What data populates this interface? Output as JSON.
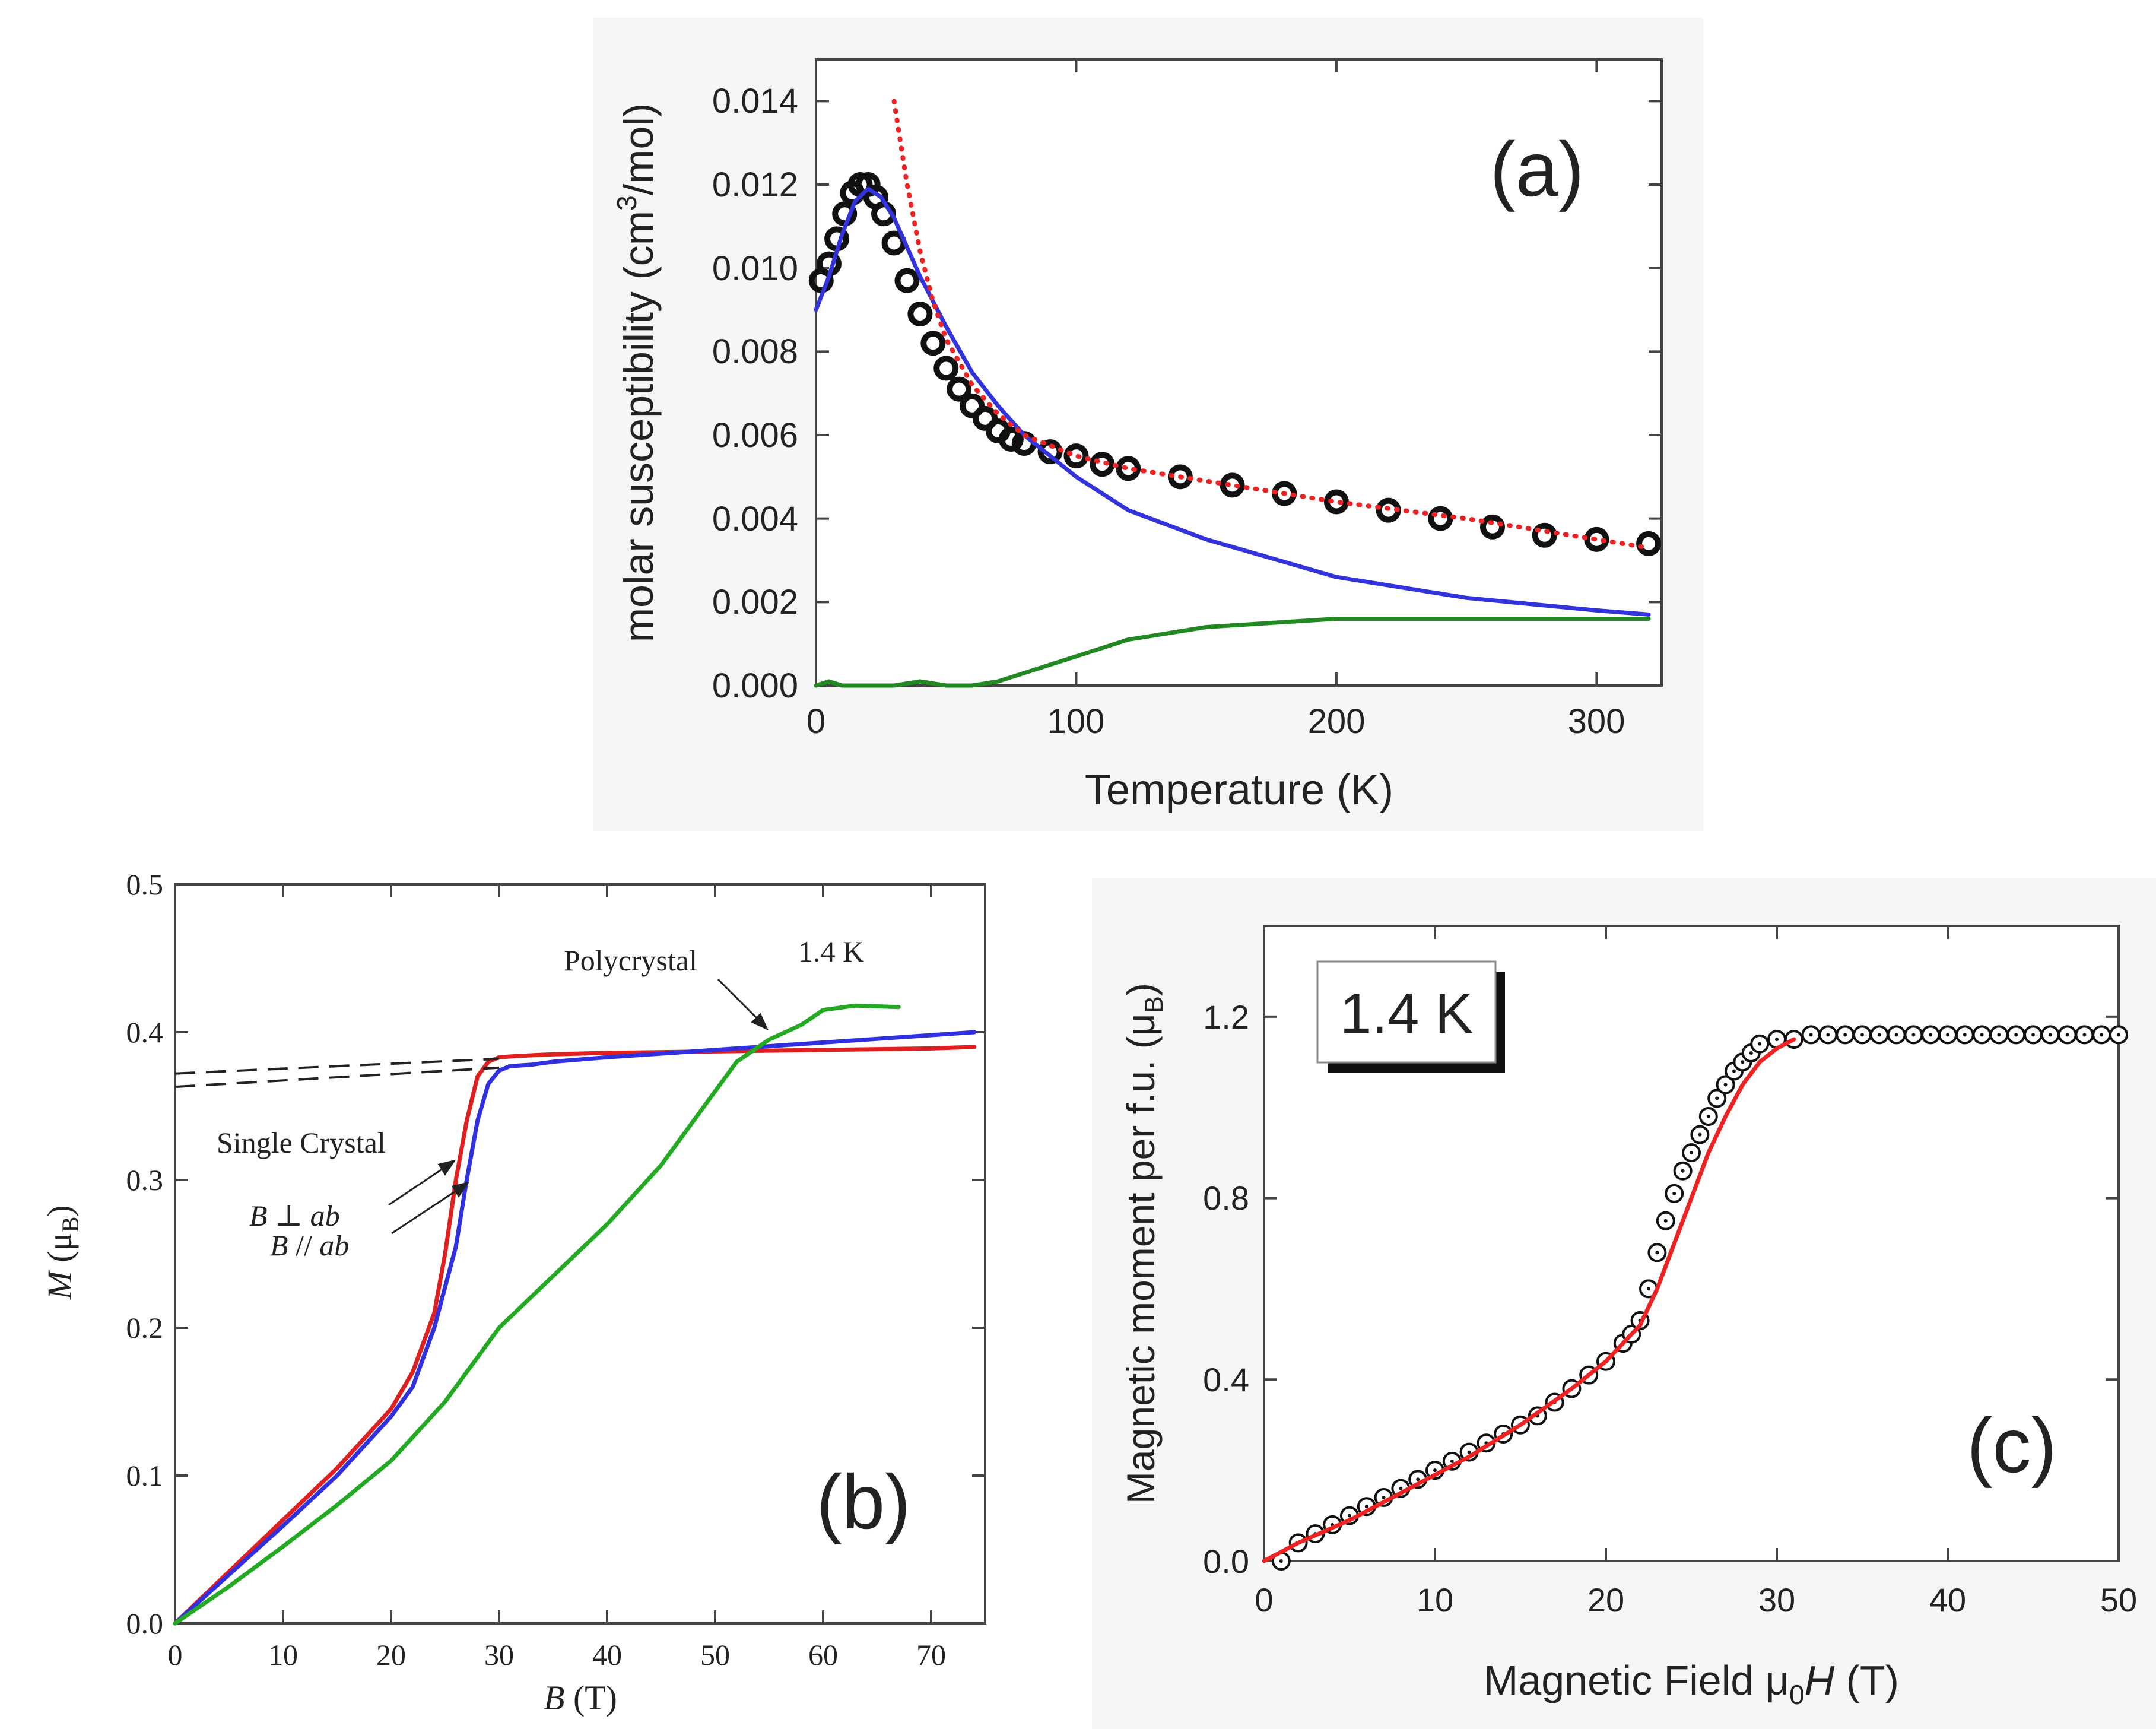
{
  "chart_data": [
    {
      "panel": "(a)",
      "type": "line",
      "title": "",
      "xlabel": "Temperature (K)",
      "ylabel": "molar susceptibility (cm3/mol)",
      "ylabel_parts": {
        "pre": "molar susceptibility (cm",
        "sup": "3",
        "post": "/mol)"
      },
      "xlim": [
        0,
        325
      ],
      "ylim": [
        0,
        0.015
      ],
      "xticks": [
        0,
        100,
        200,
        300
      ],
      "xtick_labels": [
        "0",
        "100",
        "200",
        "300"
      ],
      "yticks": [
        0,
        0.002,
        0.004,
        0.006,
        0.008,
        0.01,
        0.012,
        0.014
      ],
      "ytick_labels": [
        "0.000",
        "0.002",
        "0.004",
        "0.006",
        "0.008",
        "0.010",
        "0.012",
        "0.014"
      ],
      "grid": false,
      "series": [
        {
          "name": "data",
          "style": "circles",
          "color": "#111111",
          "x": [
            2,
            5,
            8,
            11,
            14,
            17,
            20,
            23,
            26,
            30,
            35,
            40,
            45,
            50,
            55,
            60,
            65,
            70,
            75,
            80,
            90,
            100,
            110,
            120,
            140,
            160,
            180,
            200,
            220,
            240,
            260,
            280,
            300,
            320
          ],
          "y": [
            0.0097,
            0.0101,
            0.0107,
            0.0113,
            0.0118,
            0.012,
            0.012,
            0.0117,
            0.0113,
            0.0106,
            0.0097,
            0.0089,
            0.0082,
            0.0076,
            0.0071,
            0.0067,
            0.0064,
            0.0061,
            0.0059,
            0.0058,
            0.0056,
            0.0055,
            0.0053,
            0.0052,
            0.005,
            0.0048,
            0.0046,
            0.0044,
            0.0042,
            0.004,
            0.0038,
            0.0036,
            0.0035,
            0.0034
          ]
        },
        {
          "name": "blue fit",
          "style": "line",
          "color": "#3333dd",
          "x": [
            0,
            5,
            10,
            15,
            20,
            25,
            30,
            40,
            50,
            60,
            70,
            80,
            100,
            120,
            150,
            200,
            250,
            300,
            320
          ],
          "y": [
            0.009,
            0.0098,
            0.0108,
            0.0116,
            0.0119,
            0.0117,
            0.0112,
            0.0098,
            0.0086,
            0.0075,
            0.0067,
            0.006,
            0.005,
            0.0042,
            0.0035,
            0.0026,
            0.0021,
            0.0018,
            0.0017
          ]
        },
        {
          "name": "red dotted fit",
          "style": "dotted",
          "color": "#ee2222",
          "x": [
            30,
            35,
            40,
            45,
            50,
            60,
            70,
            80,
            100,
            120,
            150,
            200,
            250,
            300,
            320
          ],
          "y": [
            0.014,
            0.012,
            0.0104,
            0.0092,
            0.0083,
            0.0072,
            0.0065,
            0.006,
            0.0055,
            0.0052,
            0.0049,
            0.0044,
            0.004,
            0.0035,
            0.0033
          ]
        },
        {
          "name": "green difference",
          "style": "line",
          "color": "#228822",
          "x": [
            0,
            5,
            10,
            20,
            30,
            40,
            50,
            60,
            70,
            80,
            100,
            120,
            150,
            200,
            250,
            300,
            320
          ],
          "y": [
            0.0,
            0.0001,
            0.0,
            0.0,
            0.0,
            0.0001,
            0.0,
            0.0,
            0.0001,
            0.0003,
            0.0007,
            0.0011,
            0.0014,
            0.0016,
            0.0016,
            0.0016,
            0.0016
          ]
        }
      ],
      "annotations": [
        {
          "text": "(a)"
        }
      ]
    },
    {
      "panel": "(b)",
      "type": "line",
      "title": "",
      "xlabel": "B (T)",
      "xlabel_parts": {
        "var": "B",
        "rest": " (T)"
      },
      "ylabel": "M (μB)",
      "ylabel_parts": {
        "var": "M",
        "open": " (μ",
        "sub": "B",
        "close": ")"
      },
      "xlim": [
        0,
        75
      ],
      "ylim": [
        0,
        0.5
      ],
      "xticks": [
        0,
        10,
        20,
        30,
        40,
        50,
        60,
        70
      ],
      "xtick_labels": [
        "0",
        "10",
        "20",
        "30",
        "40",
        "50",
        "60",
        "70"
      ],
      "yticks": [
        0,
        0.1,
        0.2,
        0.3,
        0.4,
        0.5
      ],
      "ytick_labels": [
        "0.0",
        "0.1",
        "0.2",
        "0.3",
        "0.4",
        "0.5"
      ],
      "grid": false,
      "series": [
        {
          "name": "B ⊥ ab",
          "style": "line",
          "color": "#e02020",
          "x": [
            0,
            5,
            10,
            15,
            20,
            22,
            24,
            25,
            26,
            27,
            28,
            29,
            30,
            32,
            35,
            40,
            50,
            60,
            70,
            74
          ],
          "y": [
            0,
            0.035,
            0.07,
            0.105,
            0.145,
            0.17,
            0.21,
            0.25,
            0.3,
            0.34,
            0.37,
            0.38,
            0.383,
            0.384,
            0.385,
            0.386,
            0.387,
            0.388,
            0.389,
            0.39
          ]
        },
        {
          "name": "B // ab",
          "style": "line",
          "color": "#3030e0",
          "x": [
            0,
            5,
            10,
            15,
            20,
            22,
            24,
            26,
            27,
            28,
            29,
            30,
            31,
            33,
            35,
            40,
            50,
            60,
            70,
            74
          ],
          "y": [
            0,
            0.033,
            0.066,
            0.1,
            0.14,
            0.16,
            0.2,
            0.255,
            0.3,
            0.34,
            0.365,
            0.374,
            0.377,
            0.378,
            0.38,
            0.383,
            0.388,
            0.393,
            0.398,
            0.4
          ]
        },
        {
          "name": "Polycrystal",
          "style": "line",
          "color": "#22aa22",
          "x": [
            0,
            5,
            10,
            15,
            20,
            25,
            30,
            35,
            40,
            45,
            50,
            52,
            55,
            58,
            60,
            63,
            67
          ],
          "y": [
            0,
            0.025,
            0.052,
            0.08,
            0.11,
            0.15,
            0.2,
            0.235,
            0.27,
            0.31,
            0.36,
            0.38,
            0.395,
            0.405,
            0.415,
            0.418,
            0.417
          ]
        },
        {
          "name": "extrapolation 1",
          "style": "dashed",
          "color": "#222222",
          "x": [
            0,
            30
          ],
          "y": [
            0.372,
            0.382
          ]
        },
        {
          "name": "extrapolation 2",
          "style": "dashed",
          "color": "#222222",
          "x": [
            0,
            30
          ],
          "y": [
            0.363,
            0.376
          ]
        }
      ],
      "annotations": [
        {
          "text": "Polycrystal"
        },
        {
          "text": "1.4 K"
        },
        {
          "text": "Single Crystal"
        },
        {
          "text": "B ⊥ ab",
          "parts": {
            "var": "B",
            "op": " ⊥ ",
            "tail": "ab"
          }
        },
        {
          "text": "B // ab",
          "parts": {
            "var": "B",
            "op": " // ",
            "tail": "ab"
          }
        },
        {
          "text": "(b)"
        }
      ]
    },
    {
      "panel": "(c)",
      "type": "scatter",
      "title": "",
      "xlabel": "Magnetic Field μ0H (T)",
      "xlabel_parts": {
        "pre": "Magnetic Field μ",
        "sub": "0",
        "var": "H",
        "post": " (T)"
      },
      "ylabel": "Magnetic moment per f.u. (μB)",
      "ylabel_parts": {
        "pre": "Magnetic moment per f.u. (μ",
        "sub": "B",
        "post": ")"
      },
      "xlim": [
        0,
        50
      ],
      "ylim": [
        0,
        1.4
      ],
      "xticks": [
        0,
        10,
        20,
        30,
        40,
        50
      ],
      "xtick_labels": [
        "0",
        "10",
        "20",
        "30",
        "40",
        "50"
      ],
      "yticks": [
        0,
        0.4,
        0.8,
        1.2
      ],
      "ytick_labels": [
        "0.0",
        "0.4",
        "0.8",
        "1.2"
      ],
      "grid": false,
      "series": [
        {
          "name": "measured",
          "style": "open-circles",
          "color": "#111111",
          "x": [
            1,
            2,
            3,
            4,
            5,
            6,
            7,
            8,
            9,
            10,
            11,
            12,
            13,
            14,
            15,
            16,
            17,
            18,
            19,
            20,
            21,
            21.5,
            22,
            22.5,
            23,
            23.5,
            24,
            24.5,
            25,
            25.5,
            26,
            26.5,
            27,
            27.5,
            28,
            28.5,
            29,
            30,
            31,
            32,
            33,
            34,
            35,
            36,
            37,
            38,
            39,
            40,
            41,
            42,
            43,
            44,
            45,
            46,
            47,
            48,
            49,
            50
          ],
          "y": [
            0.0,
            0.04,
            0.06,
            0.08,
            0.1,
            0.12,
            0.14,
            0.16,
            0.18,
            0.2,
            0.22,
            0.24,
            0.26,
            0.28,
            0.3,
            0.32,
            0.35,
            0.38,
            0.41,
            0.44,
            0.48,
            0.5,
            0.53,
            0.6,
            0.68,
            0.75,
            0.81,
            0.86,
            0.9,
            0.94,
            0.98,
            1.02,
            1.05,
            1.08,
            1.1,
            1.12,
            1.14,
            1.15,
            1.15,
            1.16,
            1.16,
            1.16,
            1.16,
            1.16,
            1.16,
            1.16,
            1.16,
            1.16,
            1.16,
            1.16,
            1.16,
            1.16,
            1.16,
            1.16,
            1.16,
            1.16,
            1.16,
            1.16
          ]
        },
        {
          "name": "fit",
          "style": "line",
          "color": "#ee2222",
          "x": [
            0,
            2,
            5,
            8,
            10,
            12,
            15,
            18,
            20,
            22,
            23,
            24,
            25,
            26,
            27,
            28,
            29,
            30,
            31
          ],
          "y": [
            0.0,
            0.04,
            0.09,
            0.15,
            0.19,
            0.23,
            0.3,
            0.38,
            0.44,
            0.52,
            0.6,
            0.7,
            0.8,
            0.9,
            0.98,
            1.05,
            1.1,
            1.13,
            1.15
          ]
        }
      ],
      "annotations": [
        {
          "text": "1.4 K"
        },
        {
          "text": "(c)"
        }
      ]
    }
  ]
}
